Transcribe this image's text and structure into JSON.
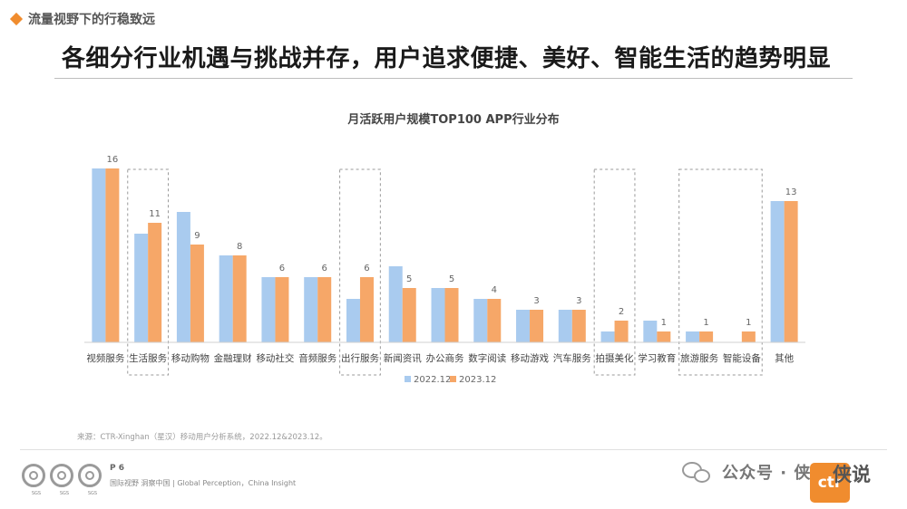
{
  "header": {
    "section_label": "流量视野下的行稳致远",
    "headline": "各细分行业机遇与挑战并存，用户追求便捷、美好、智能生活的趋势明显"
  },
  "chart_data": {
    "type": "bar",
    "title": "月活跃用户规模TOP100 APP行业分布",
    "categories": [
      "视频服务",
      "生活服务",
      "移动购物",
      "金融理财",
      "移动社交",
      "音频服务",
      "出行服务",
      "新闻资讯",
      "办公商务",
      "数字阅读",
      "移动游戏",
      "汽车服务",
      "拍摄美化",
      "学习教育",
      "旅游服务",
      "智能设备",
      "其他"
    ],
    "series": [
      {
        "name": "2022.12",
        "color": "#a9cbef",
        "values": [
          16,
          10,
          12,
          8,
          6,
          6,
          4,
          7,
          5,
          4,
          3,
          3,
          1,
          2,
          1,
          0,
          13
        ]
      },
      {
        "name": "2023.12",
        "color": "#f6a768",
        "values": [
          16,
          11,
          9,
          8,
          6,
          6,
          6,
          5,
          5,
          4,
          3,
          3,
          2,
          1,
          1,
          1,
          13
        ]
      }
    ],
    "data_labels": [
      "16",
      "11",
      "9",
      "8",
      "6",
      "6",
      "6",
      "5",
      "5",
      "4",
      "3",
      "3",
      "2",
      "1",
      "1",
      "1",
      "13"
    ],
    "highlighted_categories": [
      1,
      6,
      12,
      14,
      15
    ],
    "highlight_groups": [
      [
        1
      ],
      [
        6
      ],
      [
        12
      ],
      [
        14,
        15
      ]
    ],
    "ylim": [
      0,
      17
    ],
    "grid": false,
    "legend_position": "bottom"
  },
  "footer": {
    "source": "来源：CTR-Xinghan（星汉）移动用户分析系统，2022.12&2023.12。",
    "page": "P 6",
    "tagline": "国际视野 洞察中国 | Global Perception，China Insight",
    "seal_text": "SGS",
    "wechat_name": "公众号 · 侠说",
    "logo_text": "ctr",
    "overlay": "侠说"
  },
  "colors": {
    "accent": "#f08c2e",
    "series_2022": "#a9cbef",
    "series_2023": "#f6a768"
  },
  "icons": [
    "diamond-bullet-icon",
    "wechat-icon",
    "certification-seal-icon"
  ]
}
